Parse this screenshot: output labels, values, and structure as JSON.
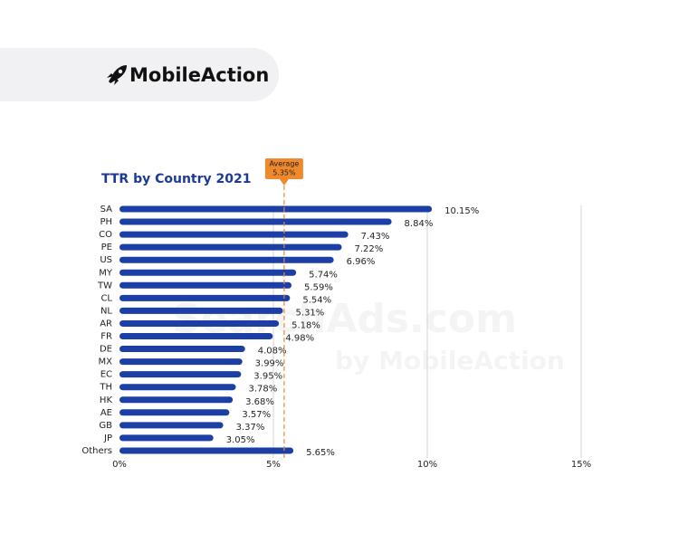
{
  "brand": "MobileAction",
  "watermark": [
    "SearchAds.com",
    "by MobileAction"
  ],
  "chart_data": {
    "type": "bar",
    "orientation": "horizontal",
    "title": "TTR by Country 2021",
    "categories": [
      "SA",
      "PH",
      "CO",
      "PE",
      "US",
      "MY",
      "TW",
      "CL",
      "NL",
      "AR",
      "FR",
      "DE",
      "MX",
      "EC",
      "TH",
      "HK",
      "AE",
      "GB",
      "JP",
      "Others"
    ],
    "values": [
      10.15,
      8.84,
      7.43,
      7.22,
      6.96,
      5.74,
      5.59,
      5.54,
      5.31,
      5.18,
      4.98,
      4.08,
      3.99,
      3.95,
      3.78,
      3.68,
      3.57,
      3.37,
      3.05,
      5.65
    ],
    "value_labels": [
      "10.15%",
      "8.84%",
      "7.43%",
      "7.22%",
      "6.96%",
      "5.74%",
      "5.59%",
      "5.54%",
      "5.31%",
      "5.18%",
      "4.98%",
      "4.08%",
      "3.99%",
      "3.95%",
      "3.78%",
      "3.68%",
      "3.57%",
      "3.37%",
      "3.05%",
      "5.65%"
    ],
    "color": "#1c3fa6",
    "xlim": [
      0,
      15
    ],
    "xticks": [
      {
        "value": 0,
        "label": "0%"
      },
      {
        "value": 5,
        "label": "5%"
      },
      {
        "value": 10,
        "label": "10%"
      },
      {
        "value": 15,
        "label": "15%"
      }
    ],
    "grid": true,
    "average": {
      "label": "Average",
      "value": 5.35,
      "value_label": "5.35%",
      "color": "#f0892b"
    }
  }
}
